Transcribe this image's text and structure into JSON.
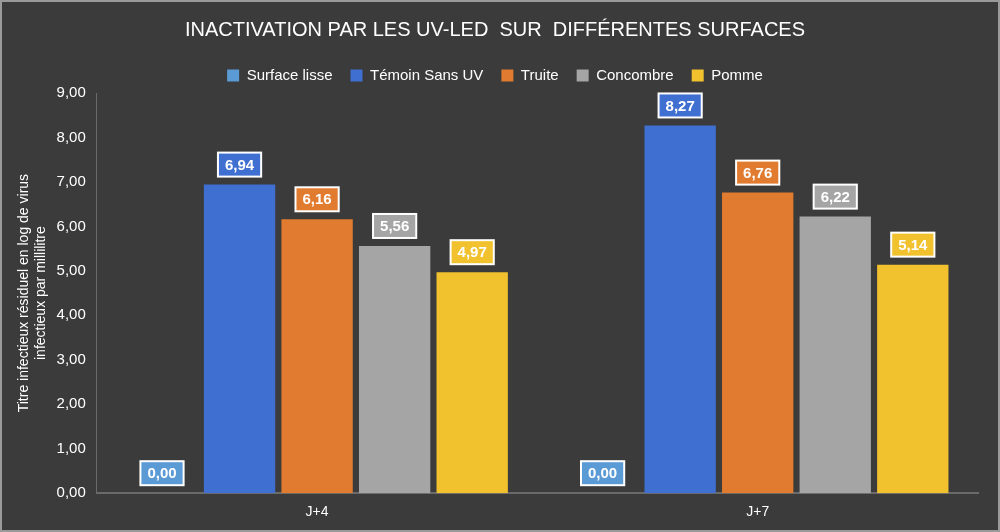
{
  "chart_data": {
    "type": "bar",
    "title": "INACTIVATION PAR LES UV-LED  SUR  DIFFÉRENTES SURFACES",
    "y_label": [
      "Titre infectieux résiduel en log de virus",
      "infectieux par millilitre"
    ],
    "categories": [
      "J+4",
      "J+7"
    ],
    "series": [
      {
        "name": "Surface lisse",
        "color": "#5b9bd5",
        "values": [
          0,
          0
        ],
        "value_labels": [
          "0,00",
          "0,00"
        ]
      },
      {
        "name": "Témoin Sans UV",
        "color": "#3f6fd1",
        "values": [
          6.94,
          8.27
        ],
        "value_labels": [
          "6,94",
          "8,27"
        ]
      },
      {
        "name": "Truite",
        "color": "#e07b2f",
        "values": [
          6.16,
          6.76
        ],
        "value_labels": [
          "6,16",
          "6,76"
        ]
      },
      {
        "name": "Concombre",
        "color": "#a5a5a5",
        "values": [
          5.56,
          6.22
        ],
        "value_labels": [
          "5,56",
          "6,22"
        ]
      },
      {
        "name": "Pomme",
        "color": "#f2c12e",
        "values": [
          4.97,
          5.14
        ],
        "value_labels": [
          "4,97",
          "5,14"
        ]
      }
    ],
    "ylim": [
      0,
      9
    ],
    "yticks": [
      {
        "value": 0,
        "label": "0,00"
      },
      {
        "value": 1,
        "label": "1,00"
      },
      {
        "value": 2,
        "label": "2,00"
      },
      {
        "value": 3,
        "label": "3,00"
      },
      {
        "value": 4,
        "label": "4,00"
      },
      {
        "value": 5,
        "label": "5,00"
      },
      {
        "value": 6,
        "label": "6,00"
      },
      {
        "value": 7,
        "label": "7,00"
      },
      {
        "value": 8,
        "label": "8,00"
      },
      {
        "value": 9,
        "label": "9,00"
      }
    ],
    "grid": false,
    "legend": "top",
    "data_labels": true
  }
}
